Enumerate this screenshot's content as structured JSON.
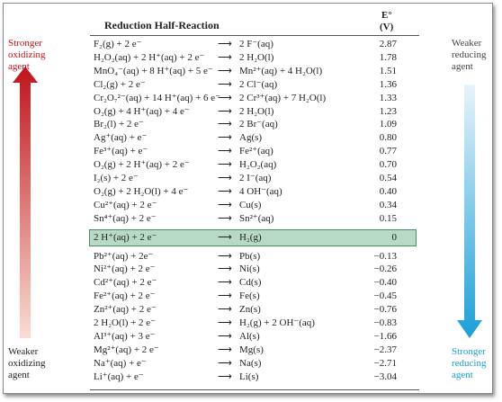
{
  "header": {
    "title": "Reduction Half-Reaction",
    "potential_symbol": "E°",
    "potential_unit": "(V)"
  },
  "side_labels": {
    "top_left": "Stronger oxidizing agent",
    "bottom_left": "Weaker oxidizing agent",
    "top_right": "Weaker reducing agent",
    "bottom_right": "Stronger reducing agent"
  },
  "highlight_row": 14,
  "rows": [
    {
      "oxidized": "F₂(g) + 2 e⁻",
      "reduced": "2 F⁻(aq)",
      "E": "2.87"
    },
    {
      "oxidized": "H₂O₂(aq) + 2 H⁺(aq) + 2 e⁻",
      "reduced": "2 H₂O(l)",
      "E": "1.78"
    },
    {
      "oxidized": "MnO₄⁻(aq) + 8 H⁺(aq) + 5 e⁻",
      "reduced": "Mn²⁺(aq) + 4 H₂O(l)",
      "E": "1.51"
    },
    {
      "oxidized": "Cl₂(g) + 2 e⁻",
      "reduced": "2 Cl⁻(aq)",
      "E": "1.36"
    },
    {
      "oxidized": "Cr₂O₇²⁻(aq) + 14 H⁺(aq) + 6 e⁻",
      "reduced": "2 Cr³⁺(aq) + 7 H₂O(l)",
      "E": "1.33"
    },
    {
      "oxidized": "O₂(g) + 4 H⁺(aq) + 4 e⁻",
      "reduced": "2 H₂O(l)",
      "E": "1.23"
    },
    {
      "oxidized": "Br₂(l) + 2 e⁻",
      "reduced": "2 Br⁻(aq)",
      "E": "1.09"
    },
    {
      "oxidized": "Ag⁺(aq) + e⁻",
      "reduced": "Ag(s)",
      "E": "0.80"
    },
    {
      "oxidized": "Fe³⁺(aq) + e⁻",
      "reduced": "Fe²⁺(aq)",
      "E": "0.77"
    },
    {
      "oxidized": "O₂(g) + 2 H⁺(aq) + 2 e⁻",
      "reduced": "H₂O₂(aq)",
      "E": "0.70"
    },
    {
      "oxidized": "I₂(s) + 2 e⁻",
      "reduced": "2 I⁻(aq)",
      "E": "0.54"
    },
    {
      "oxidized": "O₂(g) + 2 H₂O(l) + 4 e⁻",
      "reduced": "4 OH⁻(aq)",
      "E": "0.40"
    },
    {
      "oxidized": "Cu²⁺(aq) + 2 e⁻",
      "reduced": "Cu(s)",
      "E": "0.34"
    },
    {
      "oxidized": "Sn⁴⁺(aq) + 2 e⁻",
      "reduced": "Sn²⁺(aq)",
      "E": "0.15"
    },
    {
      "oxidized": "2 H⁺(aq) + 2 e⁻",
      "reduced": "H₂(g)",
      "E": "0"
    },
    {
      "oxidized": "Pb²⁺(aq) + 2e⁻",
      "reduced": "Pb(s)",
      "E": "−0.13"
    },
    {
      "oxidized": "Ni²⁺(aq) + 2 e⁻",
      "reduced": "Ni(s)",
      "E": "−0.26"
    },
    {
      "oxidized": "Cd²⁺(aq) + 2 e⁻",
      "reduced": "Cd(s)",
      "E": "−0.40"
    },
    {
      "oxidized": "Fe²⁺(aq) + 2 e⁻",
      "reduced": "Fe(s)",
      "E": "−0.45"
    },
    {
      "oxidized": "Zn²⁺(aq) + 2 e⁻",
      "reduced": "Zn(s)",
      "E": "−0.76"
    },
    {
      "oxidized": "2 H₂O(l) + 2 e⁻",
      "reduced": "H₂(g) + 2 OH⁻(aq)",
      "E": "−0.83"
    },
    {
      "oxidized": "Al³⁺(aq) + 3 e⁻",
      "reduced": "Al(s)",
      "E": "−1.66"
    },
    {
      "oxidized": "Mg²⁺(aq) + 2 e⁻",
      "reduced": "Mg(s)",
      "E": "−2.37"
    },
    {
      "oxidized": "Na⁺(aq) + e⁻",
      "reduced": "Na(s)",
      "E": "−2.71"
    },
    {
      "oxidized": "Li⁺(aq) + e⁻",
      "reduced": "Li(s)",
      "E": "−3.04"
    }
  ]
}
